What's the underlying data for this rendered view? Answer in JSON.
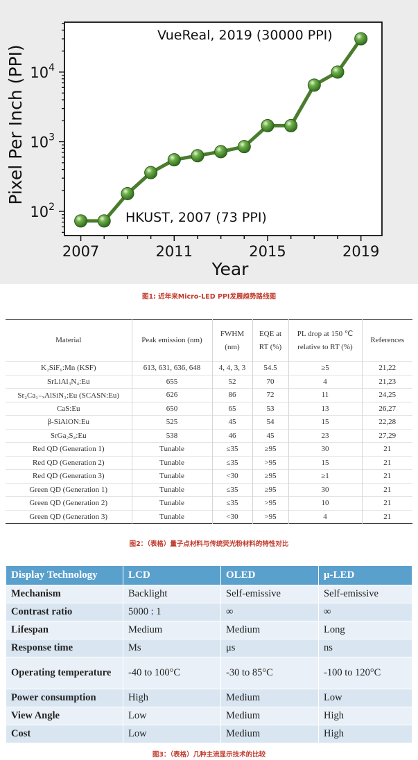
{
  "figure1": {
    "caption": "图1: 近年来Micro-LED PPI发展趋势路线图",
    "chart_data": {
      "type": "line",
      "xlabel": "Year",
      "ylabel": "Pixel Per Inch (PPI)",
      "log_y": true,
      "xlim": [
        2006.3,
        2019.9
      ],
      "ylim": [
        45,
        52000
      ],
      "x_ticks": [
        "2007",
        "2011",
        "2015",
        "2019"
      ],
      "y_ticks": [
        {
          "value": 100,
          "base": "10",
          "exp": "2"
        },
        {
          "value": 1000,
          "base": "10",
          "exp": "3"
        },
        {
          "value": 10000,
          "base": "10",
          "exp": "4"
        }
      ],
      "series": [
        {
          "x": [
            2007,
            2008,
            2009,
            2010,
            2011,
            2012,
            2013,
            2014,
            2015,
            2016,
            2017,
            2018,
            2019
          ],
          "y": [
            73,
            73,
            180,
            360,
            550,
            630,
            720,
            850,
            1700,
            1700,
            6500,
            10000,
            30000
          ]
        }
      ],
      "annotations": [
        "VueReal, 2019 (30000 PPI)",
        "HKUST, 2007 (73 PPI)"
      ],
      "line_color": "#4a7c2e",
      "marker_color": "#3f8a2a",
      "grid": false
    }
  },
  "figure2": {
    "caption": "图2：（表格）量子点材料与传统荧光粉材料的特性对比",
    "headers": [
      "Material",
      "Peak emission (nm)",
      "FWHM (nm)",
      "EQE at RT (%)",
      "PL drop at 150 ℃ relative to RT (%)",
      "References"
    ],
    "rows": [
      [
        "K₂SiF₆:Mn (KSF)",
        "613, 631, 636, 648",
        "4, 4, 3, 3",
        "54.5",
        "≥5",
        "21,22"
      ],
      [
        "SrLiAl₃N₄:Eu",
        "655",
        "52",
        "70",
        "4",
        "21,23"
      ],
      [
        "Sr₂Ca₁₋ₓAlSiN₃:Eu (SCASN:Eu)",
        "626",
        "86",
        "72",
        "11",
        "24,25"
      ],
      [
        "CaS:Eu",
        "650",
        "65",
        "53",
        "13",
        "26,27"
      ],
      [
        "β-SiAlON:Eu",
        "525",
        "45",
        "54",
        "15",
        "22,28"
      ],
      [
        "SrGa₂S₄:Eu",
        "538",
        "46",
        "45",
        "23",
        "27,29"
      ],
      [
        "Red QD (Generation 1)",
        "Tunable",
        "≤35",
        "≥95",
        "30",
        "21"
      ],
      [
        "Red QD (Generation 2)",
        "Tunable",
        "≤35",
        ">95",
        "15",
        "21"
      ],
      [
        "Red QD (Generation 3)",
        "Tunable",
        "<30",
        "≥95",
        "≥1",
        "21"
      ],
      [
        "Green QD (Generation 1)",
        "Tunable",
        "≤35",
        "≥95",
        "30",
        "21"
      ],
      [
        "Green QD (Generation 2)",
        "Tunable",
        "≤35",
        ">95",
        "10",
        "21"
      ],
      [
        "Green QD (Generation 3)",
        "Tunable",
        "<30",
        ">95",
        "4",
        "21"
      ]
    ]
  },
  "figure3": {
    "caption": "图3：（表格）几种主流显示技术的比较",
    "headers": [
      "Display Technology",
      "LCD",
      "OLED",
      "μ-LED"
    ],
    "rows": [
      [
        "Mechanism",
        "Backlight",
        "Self-emissive",
        "Self-emissive"
      ],
      [
        "Contrast ratio",
        "5000 : 1",
        "∞",
        "∞"
      ],
      [
        "Lifespan",
        "Medium",
        "Medium",
        "Long"
      ],
      [
        "Response time",
        "Ms",
        "μs",
        "ns"
      ],
      [
        "Operating temperature",
        "-40 to 100°C",
        "-30 to 85°C",
        "-100 to 120°C"
      ],
      [
        "Power consumption",
        "High",
        "Medium",
        "Low"
      ],
      [
        "View Angle",
        "Low",
        "Medium",
        "High"
      ],
      [
        "Cost",
        "Low",
        "Medium",
        "High"
      ]
    ],
    "header_color": "#5aa0cd"
  }
}
